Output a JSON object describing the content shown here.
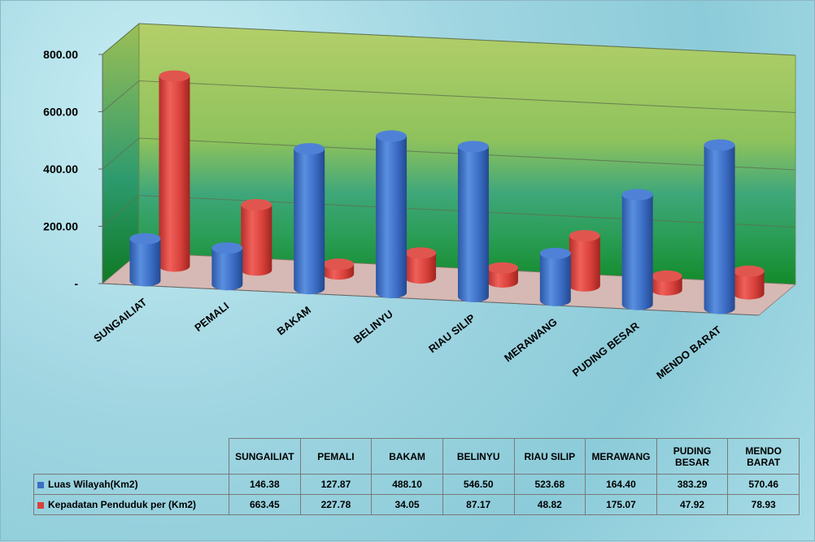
{
  "chart_data": {
    "type": "bar",
    "categories": [
      "SUNGAILIAT",
      "PEMALI",
      "BAKAM",
      "BELINYU",
      "RIAU SILIP",
      "MERAWANG",
      "PUDING BESAR",
      "MENDO BARAT"
    ],
    "table_headers": [
      "SUNGAILIAT",
      "PEMALI",
      "BAKAM",
      "BELINYU",
      "RIAU SILIP",
      "MERAWANG",
      "PUDING BESAR",
      "MENDO BARAT"
    ],
    "series": [
      {
        "name": "Luas Wilayah(Km2)",
        "color": "#3c6fc2",
        "values": [
          146.38,
          127.87,
          488.1,
          546.5,
          523.68,
          164.4,
          383.29,
          570.46
        ],
        "labels": [
          "146.38",
          "127.87",
          "488.10",
          "546.50",
          "523.68",
          "164.40",
          "383.29",
          "570.46"
        ]
      },
      {
        "name": "Kepadatan Penduduk per (Km2)",
        "color": "#d8403a",
        "values": [
          663.45,
          227.78,
          34.05,
          87.17,
          48.82,
          175.07,
          47.92,
          78.93
        ],
        "labels": [
          "663.45",
          "227.78",
          "34.05",
          "87.17",
          "48.82",
          "175.07",
          "47.92",
          "78.93"
        ]
      }
    ],
    "y_ticks": [
      "-",
      "200.00",
      "400.00",
      "600.00",
      "800.00"
    ],
    "y_tick_values": [
      0,
      200,
      400,
      600,
      800
    ],
    "ylim": [
      0,
      800
    ],
    "grid": true,
    "chart_style": "3d-cylinder",
    "legend": "data-table",
    "colors": {
      "back_wall_top": "#a9c85a",
      "back_wall_bottom": "#1a8a2e",
      "floor": "#d6b9b4"
    }
  }
}
